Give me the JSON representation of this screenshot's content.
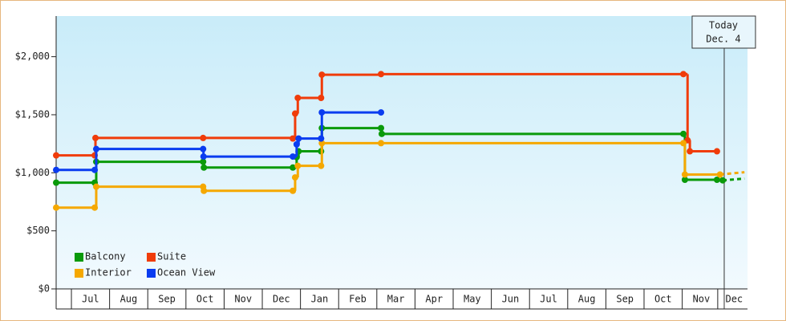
{
  "chart_data": {
    "type": "step-line",
    "xlim": [
      0.6,
      18.71
    ],
    "ylim": [
      0,
      2350
    ],
    "yticks": [
      {
        "value": 0,
        "label": "$0"
      },
      {
        "value": 500,
        "label": "$500"
      },
      {
        "value": 1000,
        "label": "$1,000"
      },
      {
        "value": 1500,
        "label": "$1,500"
      },
      {
        "value": 2000,
        "label": "$2,000"
      }
    ],
    "xticks": [
      {
        "value": 1.5,
        "label": "Jul"
      },
      {
        "value": 2.5,
        "label": "Aug"
      },
      {
        "value": 3.5,
        "label": "Sep"
      },
      {
        "value": 4.5,
        "label": "Oct"
      },
      {
        "value": 5.5,
        "label": "Nov"
      },
      {
        "value": 6.5,
        "label": "Dec"
      },
      {
        "value": 7.5,
        "label": "Jan"
      },
      {
        "value": 8.5,
        "label": "Feb"
      },
      {
        "value": 9.5,
        "label": "Mar"
      },
      {
        "value": 10.5,
        "label": "Apr"
      },
      {
        "value": 11.5,
        "label": "May"
      },
      {
        "value": 12.5,
        "label": "Jun"
      },
      {
        "value": 13.5,
        "label": "Jul"
      },
      {
        "value": 14.5,
        "label": "Aug"
      },
      {
        "value": 15.5,
        "label": "Sep"
      },
      {
        "value": 16.5,
        "label": "Oct"
      },
      {
        "value": 17.5,
        "label": "Nov"
      },
      {
        "value": 18.36,
        "label": "Dec"
      }
    ],
    "grid": false,
    "legend": "bottom-left",
    "today": {
      "x": 18.1,
      "label": [
        "Today",
        "Dec. 4"
      ]
    },
    "series": [
      {
        "name": "Balcony",
        "color": "#0a9a0a",
        "x": [
          0.6,
          1.61,
          1.65,
          4.45,
          4.47,
          6.8,
          6.9,
          6.95,
          7.54,
          7.56,
          9.11,
          9.13,
          17.03,
          17.07,
          17.91,
          18.06
        ],
        "values": [
          915,
          915,
          1095,
          1095,
          1045,
          1045,
          1135,
          1185,
          1185,
          1385,
          1385,
          1335,
          1335,
          940,
          940,
          935
        ],
        "forecast": {
          "x": [
            18.06,
            18.63
          ],
          "values": [
            935,
            950
          ]
        }
      },
      {
        "name": "Suite",
        "color": "#f03c0a",
        "x": [
          0.6,
          1.61,
          1.63,
          4.45,
          6.8,
          6.86,
          6.93,
          7.54,
          7.56,
          9.11,
          17.03,
          17.14,
          17.2,
          17.91
        ],
        "values": [
          1150,
          1150,
          1300,
          1300,
          1295,
          1510,
          1645,
          1645,
          1845,
          1850,
          1850,
          1280,
          1185,
          1185
        ]
      },
      {
        "name": "Interior",
        "color": "#f5a800",
        "x": [
          0.6,
          1.61,
          1.65,
          4.45,
          4.47,
          6.8,
          6.86,
          6.93,
          7.54,
          7.56,
          9.11,
          17.03,
          17.07,
          17.99
        ],
        "values": [
          700,
          700,
          880,
          880,
          845,
          845,
          960,
          1060,
          1060,
          1255,
          1255,
          1255,
          985,
          985
        ],
        "forecast": {
          "x": [
            17.99,
            18.63
          ],
          "values": [
            985,
            1005
          ]
        }
      },
      {
        "name": "Ocean View",
        "color": "#0a3cf0",
        "x": [
          0.6,
          1.61,
          1.65,
          4.45,
          4.46,
          6.8,
          6.9,
          6.95,
          7.54,
          7.56,
          9.11
        ],
        "values": [
          1025,
          1025,
          1205,
          1205,
          1140,
          1140,
          1245,
          1295,
          1295,
          1520,
          1520
        ]
      }
    ]
  }
}
